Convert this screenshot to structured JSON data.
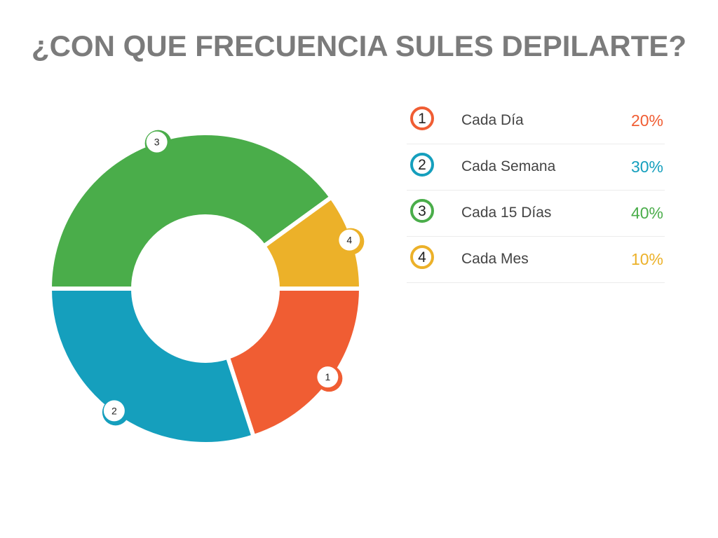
{
  "chart_data": {
    "type": "pie",
    "donut": true,
    "title": "¿CON QUE FRECUENCIA SULES DEPILARTE?",
    "slices": [
      {
        "marker": "1",
        "label": "Cada Día",
        "value": 20,
        "value_label": "20%",
        "color": "#f05d33"
      },
      {
        "marker": "2",
        "label": "Cada Semana",
        "value": 30,
        "value_label": "30%",
        "color": "#159fbd"
      },
      {
        "marker": "3",
        "label": "Cada 15 Días",
        "value": 40,
        "value_label": "40%",
        "color": "#4aad4a"
      },
      {
        "marker": "4",
        "label": "Cada Mes",
        "value": 10,
        "value_label": "10%",
        "color": "#ecb129"
      }
    ],
    "legend_placement": "right"
  }
}
